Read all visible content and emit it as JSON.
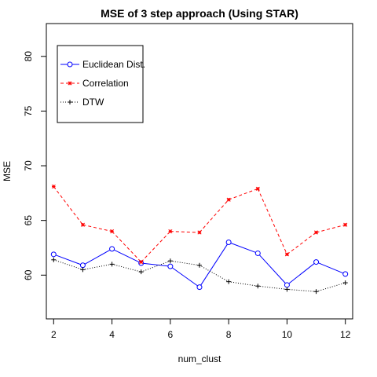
{
  "chart_data": {
    "type": "line",
    "title": "MSE of 3 step approach (Using STAR)",
    "xlabel": "num_clust",
    "ylabel": "MSE",
    "x": [
      2,
      3,
      4,
      5,
      6,
      7,
      8,
      9,
      10,
      11,
      12
    ],
    "xticks": [
      "2",
      "4",
      "6",
      "8",
      "10",
      "12"
    ],
    "yticks": [
      "60",
      "65",
      "70",
      "75",
      "80"
    ],
    "xlim": [
      1.75,
      12.25
    ],
    "ylim": [
      56.0,
      83.0
    ],
    "legend_position": "top-left",
    "grid": false,
    "series": [
      {
        "name": "Euclidean Dist.",
        "color": "#0000ff",
        "line": "solid",
        "marker": "circle",
        "values": [
          61.9,
          60.9,
          62.4,
          61.1,
          60.8,
          58.9,
          63.0,
          62.0,
          59.1,
          61.2,
          60.1
        ]
      },
      {
        "name": "Correlation",
        "color": "#ff0000",
        "line": "dashed",
        "marker": "star",
        "values": [
          68.1,
          64.6,
          64.0,
          61.2,
          64.0,
          63.9,
          66.9,
          67.9,
          61.9,
          63.9,
          64.6
        ]
      },
      {
        "name": "DTW",
        "color": "#000000",
        "line": "dotted",
        "marker": "plus",
        "values": [
          61.4,
          60.5,
          61.0,
          60.3,
          61.3,
          60.9,
          59.4,
          59.0,
          58.7,
          58.5,
          59.3
        ]
      }
    ]
  }
}
